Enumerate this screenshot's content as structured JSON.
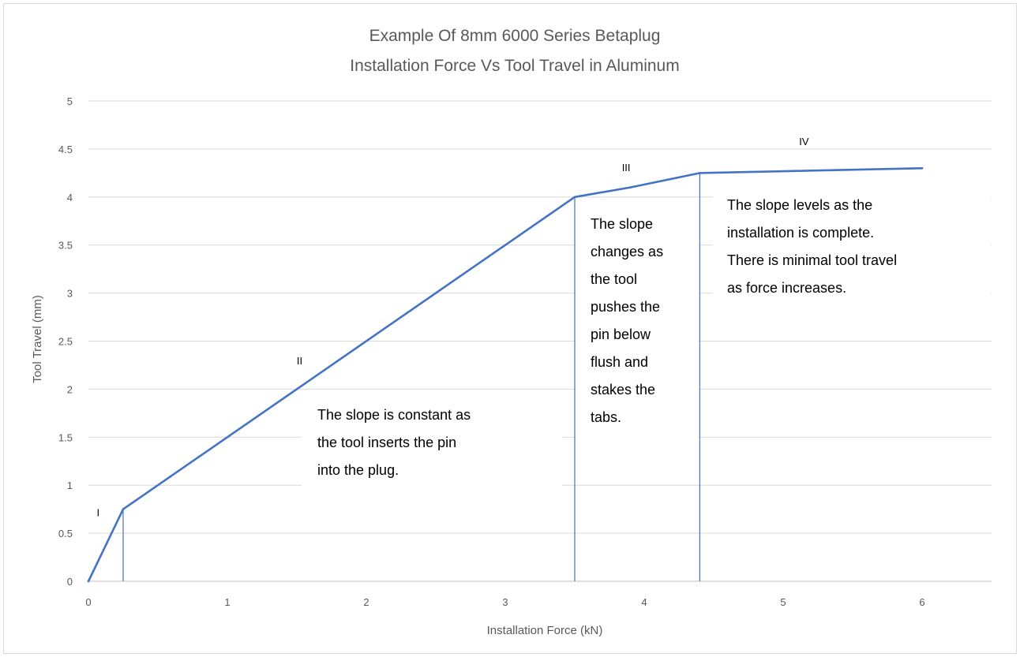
{
  "chart_data": {
    "type": "line",
    "title_lines": [
      "Example Of 8mm 6000 Series Betaplug",
      "Installation Force Vs Tool Travel in Aluminum"
    ],
    "xlabel": "Installation Force (kN)",
    "ylabel": "Tool Travel (mm)",
    "xlim": [
      0,
      6.5
    ],
    "ylim": [
      0,
      5
    ],
    "x_ticks": [
      0,
      1,
      2,
      3,
      4,
      5,
      6
    ],
    "y_ticks": [
      0,
      0.5,
      1,
      1.5,
      2,
      2.5,
      3,
      3.5,
      4,
      4.5,
      5
    ],
    "x_tick_labels": [
      "0",
      "1",
      "2",
      "3",
      "4",
      "5",
      "6"
    ],
    "y_tick_labels": [
      "0",
      "0.5",
      "1",
      "1.5",
      "2",
      "2.5",
      "3",
      "3.5",
      "4",
      "4.5",
      "5"
    ],
    "grid": "horizontal",
    "line_color": "#4472c4",
    "series": [
      {
        "x": [
          0,
          0.25,
          3.5,
          3.9,
          4.4,
          6.0
        ],
        "y": [
          0,
          0.75,
          4.0,
          4.1,
          4.25,
          4.3
        ]
      }
    ],
    "phase_dividers_x": [
      0.25,
      3.5,
      4.4
    ],
    "phase_labels": [
      {
        "text": "I",
        "x": 0.07,
        "y": 0.72
      },
      {
        "text": "II",
        "x": 1.52,
        "y": 2.3
      },
      {
        "text": "III",
        "x": 3.87,
        "y": 4.31
      },
      {
        "text": "IV",
        "x": 5.15,
        "y": 4.58
      }
    ],
    "annotations": [
      {
        "lines": [
          "The slope is constant as",
          "the tool inserts the pin",
          "into the plug."
        ]
      },
      {
        "lines": [
          "The slope",
          "changes as",
          "the tool",
          "pushes the",
          "pin below",
          "flush and",
          "stakes the",
          "tabs."
        ]
      },
      {
        "lines": [
          "The slope levels as the",
          "installation is complete.",
          "There is minimal tool travel",
          "as force increases."
        ]
      }
    ]
  }
}
